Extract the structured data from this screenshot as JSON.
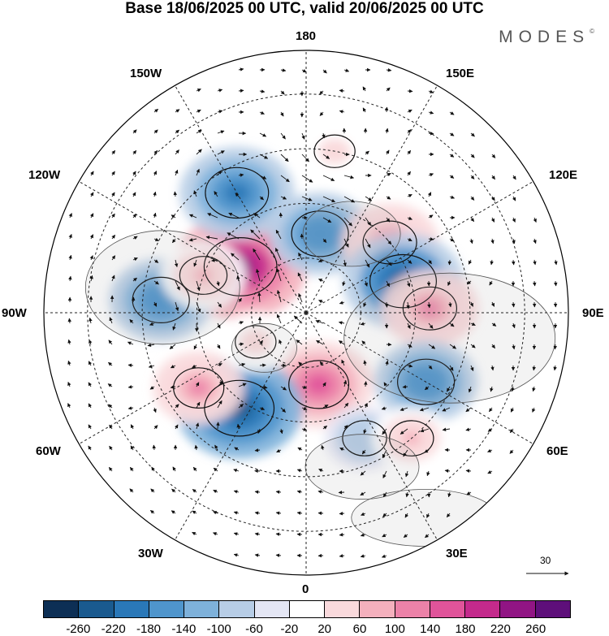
{
  "title": "Base 18/06/2025 00 UTC, valid 20/06/2025 00 UTC",
  "brand": "MODES",
  "brand_mark": "©",
  "longitude_labels": {
    "top": "180",
    "bottom": "0",
    "left": "90W",
    "right": "90E",
    "upper_left_1": "150W",
    "upper_left_2": "120W",
    "upper_right_1": "150E",
    "upper_right_2": "120E",
    "lower_left_1": "60W",
    "lower_left_2": "30W",
    "lower_right_1": "60E",
    "lower_right_2": "30E"
  },
  "reference_vector": "30",
  "colorbar": {
    "colors": [
      "#0d2f55",
      "#1a5a8f",
      "#2a78b8",
      "#4f95cc",
      "#7eb1da",
      "#b7cde6",
      "#e4e6f4",
      "#ffffff",
      "#f9d9dc",
      "#f4b0bd",
      "#ec82a8",
      "#e0549a",
      "#c42a8c",
      "#911584",
      "#5e0f7a"
    ],
    "ticks": [
      "-260",
      "-220",
      "-180",
      "-140",
      "-100",
      "-60",
      "-20",
      "20",
      "60",
      "100",
      "140",
      "180",
      "220",
      "260"
    ]
  },
  "anomaly_cells": [
    {
      "lon": -125,
      "colat": 22,
      "value": 260
    },
    {
      "lon": -150,
      "colat": 38,
      "value": -200
    },
    {
      "lon": 170,
      "colat": 22,
      "value": -160
    },
    {
      "lon": 130,
      "colat": 30,
      "value": 140
    },
    {
      "lon": 108,
      "colat": 28,
      "value": -220
    },
    {
      "lon": 92,
      "colat": 34,
      "value": 140
    },
    {
      "lon": 60,
      "colat": 38,
      "value": -160
    },
    {
      "lon": 10,
      "colat": 20,
      "value": 180
    },
    {
      "lon": -35,
      "colat": 32,
      "value": -240
    },
    {
      "lon": -55,
      "colat": 36,
      "value": 120
    },
    {
      "lon": -95,
      "colat": 40,
      "value": -160
    },
    {
      "lon": -110,
      "colat": 30,
      "value": 100
    },
    {
      "lon": 25,
      "colat": 38,
      "value": -80
    },
    {
      "lon": 40,
      "colat": 45,
      "value": 80
    },
    {
      "lon": -60,
      "colat": 16,
      "value": 60
    },
    {
      "lon": 170,
      "colat": 45,
      "value": 60
    }
  ]
}
